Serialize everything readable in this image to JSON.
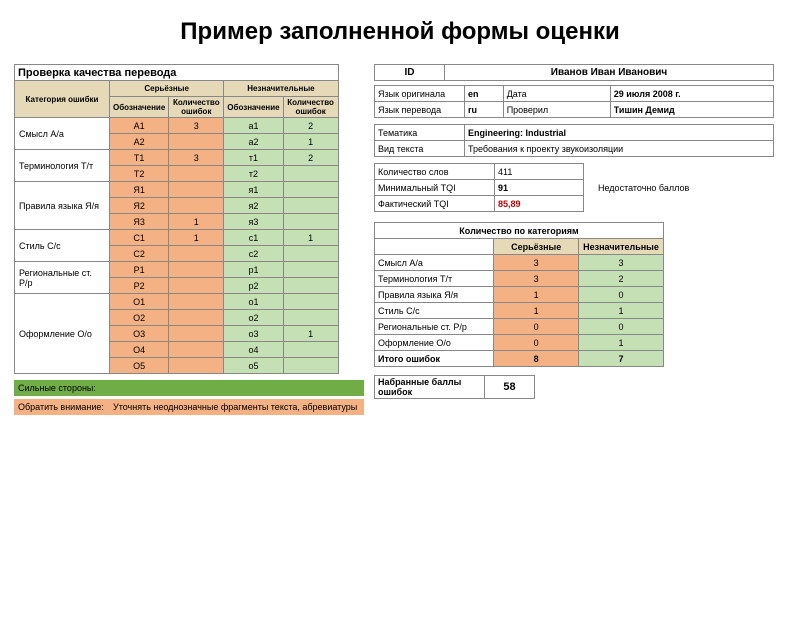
{
  "title": "Пример заполненной формы оценки",
  "left": {
    "header": "Проверка качества перевода",
    "colHeaders": {
      "category": "Категория ошибки",
      "serious": "Серьёзные",
      "minor": "Незначительные",
      "code": "Обозначение",
      "count": "Количество ошибок",
      "code2": "Обозначение",
      "count2": "Количество ошибок"
    },
    "colors": {
      "tan": "#e6d9b8",
      "orange": "#f4b183",
      "ltgreen": "#c5e0b4",
      "green": "#70ad47"
    },
    "categories": [
      {
        "name": "Смысл A/a",
        "rows": [
          {
            "c1": "A1",
            "n1": "3",
            "c2": "a1",
            "n2": "2"
          },
          {
            "c1": "A2",
            "n1": "",
            "c2": "a2",
            "n2": "1"
          }
        ]
      },
      {
        "name": "Терминология T/т",
        "rows": [
          {
            "c1": "T1",
            "n1": "3",
            "c2": "т1",
            "n2": "2"
          },
          {
            "c1": "T2",
            "n1": "",
            "c2": "т2",
            "n2": ""
          }
        ]
      },
      {
        "name": "Правила языка Я/я",
        "rows": [
          {
            "c1": "Я1",
            "n1": "",
            "c2": "я1",
            "n2": ""
          },
          {
            "c1": "Я2",
            "n1": "",
            "c2": "я2",
            "n2": ""
          },
          {
            "c1": "Я3",
            "n1": "1",
            "c2": "я3",
            "n2": ""
          }
        ]
      },
      {
        "name": "Стиль C/c",
        "rows": [
          {
            "c1": "C1",
            "n1": "1",
            "c2": "c1",
            "n2": "1"
          },
          {
            "c1": "C2",
            "n1": "",
            "c2": "c2",
            "n2": ""
          }
        ]
      },
      {
        "name": "Региональные ст. P/p",
        "rows": [
          {
            "c1": "P1",
            "n1": "",
            "c2": "p1",
            "n2": ""
          },
          {
            "c1": "P2",
            "n1": "",
            "c2": "p2",
            "n2": ""
          }
        ]
      },
      {
        "name": "Оформление O/o",
        "rows": [
          {
            "c1": "O1",
            "n1": "",
            "c2": "o1",
            "n2": ""
          },
          {
            "c1": "O2",
            "n1": "",
            "c2": "o2",
            "n2": ""
          },
          {
            "c1": "O3",
            "n1": "",
            "c2": "o3",
            "n2": "1"
          },
          {
            "c1": "O4",
            "n1": "",
            "c2": "o4",
            "n2": ""
          },
          {
            "c1": "O5",
            "n1": "",
            "c2": "o5",
            "n2": ""
          }
        ]
      }
    ],
    "footer": {
      "strengths_label": "Сильные стороны:",
      "strengths_value": "",
      "attention_label": "Обратить внимание:",
      "attention_value": "Уточнять неоднозначные фрагменты текста, абревиатуры"
    }
  },
  "right": {
    "id_label": "ID",
    "id_value": "Иванов Иван Иванович",
    "info": [
      {
        "l1": "Язык оригинала",
        "v1": "en",
        "l2": "Дата",
        "v2": "29 июля 2008 г."
      },
      {
        "l1": "Язык перевода",
        "v1": "ru",
        "l2": "Проверил",
        "v2": "Тишин Демид"
      }
    ],
    "meta": [
      {
        "l": "Тематика",
        "v": "Engineering: Industrial",
        "bold": true
      },
      {
        "l": "Вид текста",
        "v": "Требования к проекту звукоизоляции",
        "bold": false
      }
    ],
    "stats": [
      {
        "l": "Количество слов",
        "v": "411",
        "red": false
      },
      {
        "l": "Минимальный TQI",
        "v": "91",
        "red": false,
        "bold": true
      },
      {
        "l": "Фактический TQI",
        "v": "85,89",
        "red": true,
        "bold": true
      }
    ],
    "note": "Недостаточно баллов",
    "counts": {
      "header": "Количество по категориям",
      "col1": "Серьёзные",
      "col2": "Незначительные",
      "rows": [
        {
          "cat": "Смысл A/a",
          "s": "3",
          "m": "3"
        },
        {
          "cat": "Терминология T/т",
          "s": "3",
          "m": "2"
        },
        {
          "cat": "Правила языка Я/я",
          "s": "1",
          "m": "0"
        },
        {
          "cat": "Стиль C/c",
          "s": "1",
          "m": "1"
        },
        {
          "cat": "Региональные ст. P/p",
          "s": "0",
          "m": "0"
        },
        {
          "cat": "Оформление O/o",
          "s": "0",
          "m": "1"
        }
      ],
      "total_label": "Итого ошибок",
      "total_s": "8",
      "total_m": "7"
    },
    "score": {
      "label": "Набранные баллы ошибок",
      "value": "58"
    }
  }
}
